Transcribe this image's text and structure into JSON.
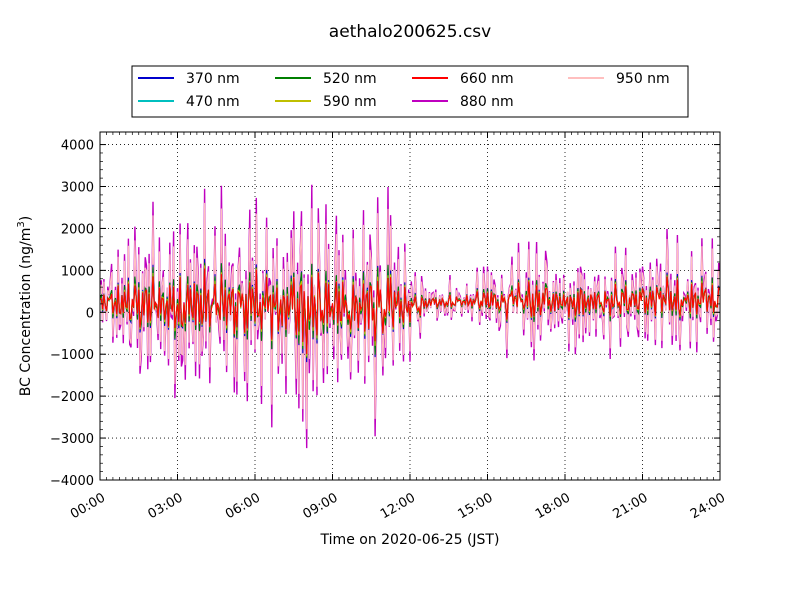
{
  "chart_data": {
    "type": "line",
    "title": "aethalo200625.csv",
    "xlabel": "Time on 2020-06-25 (JST)",
    "ylabel_prefix": "BC Concentration (ng/m",
    "ylabel_sup": "3",
    "ylabel_suffix": ")",
    "xlim": [
      0,
      24
    ],
    "ylim": [
      -4000,
      4300
    ],
    "x_ticks": [
      {
        "v": 0,
        "label": "00:00"
      },
      {
        "v": 3,
        "label": "03:00"
      },
      {
        "v": 6,
        "label": "06:00"
      },
      {
        "v": 9,
        "label": "09:00"
      },
      {
        "v": 12,
        "label": "12:00"
      },
      {
        "v": 15,
        "label": "15:00"
      },
      {
        "v": 18,
        "label": "18:00"
      },
      {
        "v": 21,
        "label": "21:00"
      },
      {
        "v": 24,
        "label": "24:00"
      }
    ],
    "y_ticks": [
      {
        "v": 4000,
        "label": "4000"
      },
      {
        "v": 3000,
        "label": "3000"
      },
      {
        "v": 2000,
        "label": "2000"
      },
      {
        "v": 1000,
        "label": "1000"
      },
      {
        "v": 0,
        "label": "0"
      },
      {
        "v": -1000,
        "label": "−1000"
      },
      {
        "v": -2000,
        "label": "−2000"
      },
      {
        "v": -3000,
        "label": "−3000"
      },
      {
        "v": -4000,
        "label": "−4000"
      }
    ],
    "grid": true,
    "legend_position": "top-center",
    "series": [
      {
        "name": "370 nm",
        "color": "#0000cc",
        "scale": 0.38,
        "phase": 0.3
      },
      {
        "name": "470 nm",
        "color": "#00bfbf",
        "scale": 0.34,
        "phase": 0.5
      },
      {
        "name": "520 nm",
        "color": "#007f00",
        "scale": 0.36,
        "phase": 0.1
      },
      {
        "name": "590 nm",
        "color": "#bfbf00",
        "scale": 0.33,
        "phase": 0.7
      },
      {
        "name": "660 nm",
        "color": "#ff0000",
        "scale": 0.32,
        "phase": 0.9
      },
      {
        "name": "880 nm",
        "color": "#bf00bf",
        "scale": 1.0,
        "phase": 0.0
      },
      {
        "name": "950 nm",
        "color": "#ffbfbf",
        "scale": 0.85,
        "phase": 0.2
      }
    ],
    "envelope": [
      {
        "t": 0.0,
        "a": 900
      },
      {
        "t": 1.0,
        "a": 1700
      },
      {
        "t": 2.5,
        "a": 2200
      },
      {
        "t": 4.0,
        "a": 2300
      },
      {
        "t": 5.0,
        "a": 2600
      },
      {
        "t": 6.0,
        "a": 2600
      },
      {
        "t": 7.0,
        "a": 2400
      },
      {
        "t": 8.0,
        "a": 3300
      },
      {
        "t": 9.0,
        "a": 2900
      },
      {
        "t": 10.0,
        "a": 2100
      },
      {
        "t": 10.8,
        "a": 3500
      },
      {
        "t": 11.5,
        "a": 1800
      },
      {
        "t": 12.2,
        "a": 900
      },
      {
        "t": 13.0,
        "a": 450
      },
      {
        "t": 14.0,
        "a": 600
      },
      {
        "t": 15.0,
        "a": 900
      },
      {
        "t": 16.0,
        "a": 1200
      },
      {
        "t": 17.0,
        "a": 1350
      },
      {
        "t": 18.0,
        "a": 1100
      },
      {
        "t": 19.0,
        "a": 1300
      },
      {
        "t": 20.0,
        "a": 1000
      },
      {
        "t": 21.0,
        "a": 1100
      },
      {
        "t": 22.0,
        "a": 1500
      },
      {
        "t": 23.0,
        "a": 1300
      },
      {
        "t": 24.0,
        "a": 1500
      }
    ],
    "offset": [
      {
        "t": 0.0,
        "v": 200
      },
      {
        "t": 12.0,
        "v": 100
      },
      {
        "t": 13.0,
        "v": 250
      },
      {
        "t": 24.0,
        "v": 300
      }
    ]
  }
}
